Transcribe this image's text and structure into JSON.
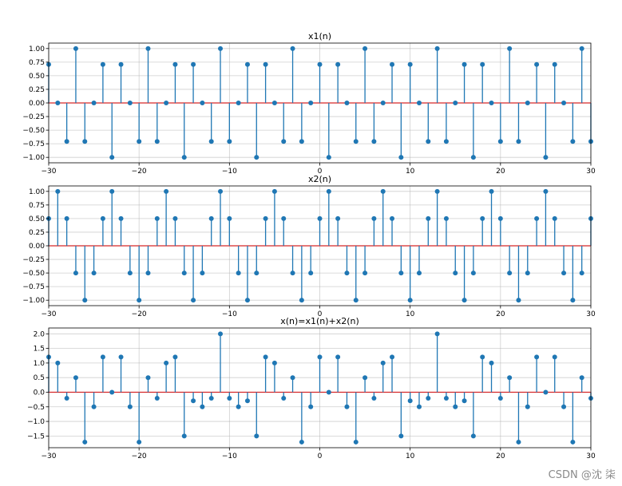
{
  "watermark": "CSDN @沈  柒",
  "colors": {
    "stem": "#1f77b4",
    "baseline": "#d62728",
    "grid": "#b0b0b0",
    "axes": "#000000"
  },
  "chart_data": [
    {
      "type": "stem",
      "title": "x1(n)",
      "xlabel": "",
      "ylabel": "",
      "xlim": [
        -30,
        30
      ],
      "ylim": [
        -1.1,
        1.1
      ],
      "xticks": [
        -30,
        -20,
        -10,
        0,
        10,
        20,
        30
      ],
      "xtick_labels": [
        "−30",
        "−20",
        "−10",
        "0",
        "10",
        "20",
        "30"
      ],
      "yticks": [
        -1.0,
        -0.75,
        -0.5,
        -0.25,
        0.0,
        0.25,
        0.5,
        0.75,
        1.0
      ],
      "ytick_labels": [
        "−1.00",
        "−0.75",
        "−0.50",
        "−0.25",
        "0.00",
        "0.25",
        "0.50",
        "0.75",
        "1.00"
      ],
      "grid": true,
      "n": [
        -30,
        -29,
        -28,
        -27,
        -26,
        -25,
        -24,
        -23,
        -22,
        -21,
        -20,
        -19,
        -18,
        -17,
        -16,
        -15,
        -14,
        -13,
        -12,
        -11,
        -10,
        -9,
        -8,
        -7,
        -6,
        -5,
        -4,
        -3,
        -2,
        -1,
        0,
        1,
        2,
        3,
        4,
        5,
        6,
        7,
        8,
        9,
        10,
        11,
        12,
        13,
        14,
        15,
        16,
        17,
        18,
        19,
        20,
        21,
        22,
        23,
        24,
        25,
        26,
        27,
        28,
        29,
        30
      ],
      "values": [
        0.707,
        0,
        -0.707,
        1,
        -0.707,
        0,
        0.707,
        -1,
        0.707,
        0,
        -0.707,
        1,
        -0.707,
        0,
        0.707,
        -1,
        0.707,
        0,
        -0.707,
        1,
        -0.707,
        0,
        0.707,
        -1,
        0.707,
        0,
        -0.707,
        1,
        -0.707,
        0,
        0.707,
        -1,
        0.707,
        0,
        -0.707,
        1,
        -0.707,
        0,
        0.707,
        -1,
        0.707,
        0,
        -0.707,
        1,
        -0.707,
        0,
        0.707,
        -1,
        0.707,
        0,
        -0.707,
        1,
        -0.707,
        0,
        0.707,
        -1,
        0.707,
        0,
        -0.707,
        1,
        -0.707
      ]
    },
    {
      "type": "stem",
      "title": "x2(n)",
      "xlabel": "",
      "ylabel": "",
      "xlim": [
        -30,
        30
      ],
      "ylim": [
        -1.1,
        1.1
      ],
      "xticks": [
        -30,
        -20,
        -10,
        0,
        10,
        20,
        30
      ],
      "xtick_labels": [
        "−30",
        "−20",
        "−10",
        "0",
        "10",
        "20",
        "30"
      ],
      "yticks": [
        -1.0,
        -0.75,
        -0.5,
        -0.25,
        0.0,
        0.25,
        0.5,
        0.75,
        1.0
      ],
      "ytick_labels": [
        "−1.00",
        "−0.75",
        "−0.50",
        "−0.25",
        "0.00",
        "0.25",
        "0.50",
        "0.75",
        "1.00"
      ],
      "grid": true,
      "n": [
        -30,
        -29,
        -28,
        -27,
        -26,
        -25,
        -24,
        -23,
        -22,
        -21,
        -20,
        -19,
        -18,
        -17,
        -16,
        -15,
        -14,
        -13,
        -12,
        -11,
        -10,
        -9,
        -8,
        -7,
        -6,
        -5,
        -4,
        -3,
        -2,
        -1,
        0,
        1,
        2,
        3,
        4,
        5,
        6,
        7,
        8,
        9,
        10,
        11,
        12,
        13,
        14,
        15,
        16,
        17,
        18,
        19,
        20,
        21,
        22,
        23,
        24,
        25,
        26,
        27,
        28,
        29,
        30
      ],
      "values": [
        0.5,
        1,
        0.5,
        -0.5,
        -1,
        -0.5,
        0.5,
        1,
        0.5,
        -0.5,
        -1,
        -0.5,
        0.5,
        1,
        0.5,
        -0.5,
        -1,
        -0.5,
        0.5,
        1,
        0.5,
        -0.5,
        -1,
        -0.5,
        0.5,
        1,
        0.5,
        -0.5,
        -1,
        -0.5,
        0.5,
        1,
        0.5,
        -0.5,
        -1,
        -0.5,
        0.5,
        1,
        0.5,
        -0.5,
        -1,
        -0.5,
        0.5,
        1,
        0.5,
        -0.5,
        -1,
        -0.5,
        0.5,
        1,
        0.5,
        -0.5,
        -1,
        -0.5,
        0.5,
        1,
        0.5,
        -0.5,
        -1,
        -0.5,
        0.5
      ]
    },
    {
      "type": "stem",
      "title": "x(n)=x1(n)+x2(n)",
      "xlabel": "",
      "ylabel": "",
      "xlim": [
        -30,
        30
      ],
      "ylim": [
        -1.9,
        2.2
      ],
      "xticks": [
        -30,
        -20,
        -10,
        0,
        10,
        20,
        30
      ],
      "xtick_labels": [
        "−30",
        "−20",
        "−10",
        "0",
        "10",
        "20",
        "30"
      ],
      "yticks": [
        -1.5,
        -1.0,
        -0.5,
        0.0,
        0.5,
        1.0,
        1.5,
        2.0
      ],
      "ytick_labels": [
        "−1.5",
        "−1.0",
        "−0.5",
        "0.0",
        "0.5",
        "1.0",
        "1.5",
        "2.0"
      ],
      "grid": true,
      "n": [
        -30,
        -29,
        -28,
        -27,
        -26,
        -25,
        -24,
        -23,
        -22,
        -21,
        -20,
        -19,
        -18,
        -17,
        -16,
        -15,
        -14,
        -13,
        -12,
        -11,
        -10,
        -9,
        -8,
        -7,
        -6,
        -5,
        -4,
        -3,
        -2,
        -1,
        0,
        1,
        2,
        3,
        4,
        5,
        6,
        7,
        8,
        9,
        10,
        11,
        12,
        13,
        14,
        15,
        16,
        17,
        18,
        19,
        20,
        21,
        22,
        23,
        24,
        25,
        26,
        27,
        28,
        29,
        30
      ],
      "values": [
        1.207,
        1,
        -0.207,
        0.5,
        -1.707,
        -0.5,
        1.207,
        0,
        1.207,
        -0.5,
        -1.707,
        0.5,
        -0.207,
        1,
        1.207,
        -1.5,
        -0.293,
        -0.5,
        -0.207,
        2,
        -0.207,
        -0.5,
        -0.293,
        -1.5,
        1.207,
        1,
        -0.207,
        0.5,
        -1.707,
        -0.5,
        1.207,
        0,
        1.207,
        -0.5,
        -1.707,
        0.5,
        -0.207,
        1,
        1.207,
        -1.5,
        -0.293,
        -0.5,
        -0.207,
        2,
        -0.207,
        -0.5,
        -0.293,
        -1.5,
        1.207,
        1,
        -0.207,
        0.5,
        -1.707,
        -0.5,
        1.207,
        0,
        1.207,
        -0.5,
        -1.707,
        0.5,
        -0.207
      ]
    }
  ]
}
